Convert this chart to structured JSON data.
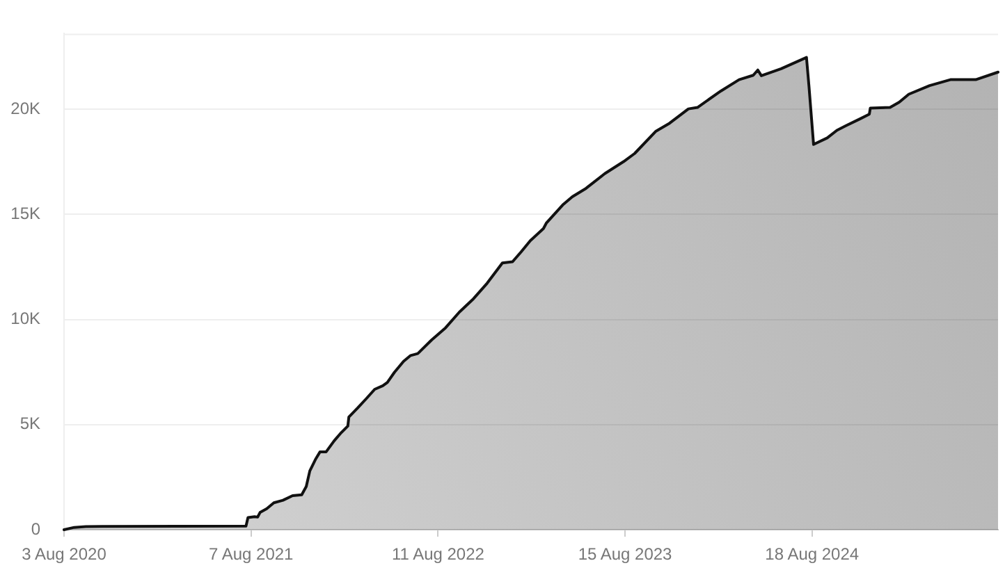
{
  "chart_data": {
    "type": "area",
    "grid": "y",
    "x": [
      "2020-08-03",
      "2020-08-23",
      "2020-09-15",
      "2020-10-17",
      "2021-07-28",
      "2021-08-01",
      "2021-08-14",
      "2021-08-20",
      "2021-08-25",
      "2021-09-07",
      "2021-09-21",
      "2021-10-09",
      "2021-10-28",
      "2021-11-15",
      "2021-11-24",
      "2021-12-01",
      "2021-12-12",
      "2021-12-21",
      "2022-01-02",
      "2022-01-18",
      "2022-02-01",
      "2022-02-14",
      "2022-02-16",
      "2022-03-05",
      "2022-03-23",
      "2022-04-08",
      "2022-04-24",
      "2022-05-03",
      "2022-05-17",
      "2022-06-04",
      "2022-06-18",
      "2022-07-02",
      "2022-07-29",
      "2022-08-26",
      "2022-09-22",
      "2022-10-20",
      "2022-11-16",
      "2022-12-16",
      "2023-01-05",
      "2023-01-22",
      "2023-02-09",
      "2023-03-07",
      "2023-03-13",
      "2023-04-14",
      "2023-05-03",
      "2023-05-30",
      "2023-07-06",
      "2023-08-12",
      "2023-09-03",
      "2023-10-15",
      "2023-11-11",
      "2023-12-18",
      "2024-01-05",
      "2024-02-20",
      "2024-03-27",
      "2024-04-24",
      "2024-05-03",
      "2024-05-10",
      "2024-06-18",
      "2024-08-07",
      "2024-08-12",
      "2024-08-21",
      "2024-09-17",
      "2024-10-06",
      "2024-10-24",
      "2024-11-21",
      "2024-12-09",
      "2024-12-11",
      "2025-01-19",
      "2025-02-06",
      "2025-02-25",
      "2025-04-07",
      "2025-05-18",
      "2025-07-07",
      "2025-08-20"
    ],
    "series": [
      {
        "color": "#111111",
        "values": [
          0,
          110,
          150,
          160,
          170,
          580,
          620,
          600,
          830,
          1000,
          1280,
          1400,
          1620,
          1660,
          2060,
          2800,
          3340,
          3700,
          3700,
          4230,
          4620,
          4930,
          5360,
          5780,
          6250,
          6680,
          6850,
          7010,
          7490,
          8010,
          8290,
          8380,
          9020,
          9610,
          10350,
          10990,
          11730,
          12690,
          12750,
          13220,
          13750,
          14330,
          14600,
          15450,
          15840,
          16240,
          16940,
          17510,
          17900,
          18960,
          19340,
          20020,
          20090,
          20870,
          21410,
          21620,
          21870,
          21600,
          21930,
          22470,
          21080,
          18330,
          18640,
          19000,
          19220,
          19550,
          19770,
          20060,
          20090,
          20340,
          20720,
          21130,
          21410,
          21410,
          21770
        ]
      }
    ],
    "xlim": [
      "2020-08-03",
      "2025-08-20"
    ],
    "xticks": [
      {
        "value": "2020-08-03",
        "label": "3 Aug 2020"
      },
      {
        "value": "2021-08-07",
        "label": "7 Aug 2021"
      },
      {
        "value": "2022-08-11",
        "label": "11 Aug 2022"
      },
      {
        "value": "2023-08-15",
        "label": "15 Aug 2023"
      },
      {
        "value": "2024-08-18",
        "label": "18 Aug 2024"
      }
    ],
    "ylim": [
      0,
      23600
    ],
    "yticks": [
      0,
      {
        "value": 5000,
        "label": "5K"
      },
      {
        "value": 10000,
        "label": "10K"
      },
      {
        "value": 15000,
        "label": "15K"
      },
      {
        "value": 20000,
        "label": "20K"
      }
    ],
    "marker": "none"
  }
}
